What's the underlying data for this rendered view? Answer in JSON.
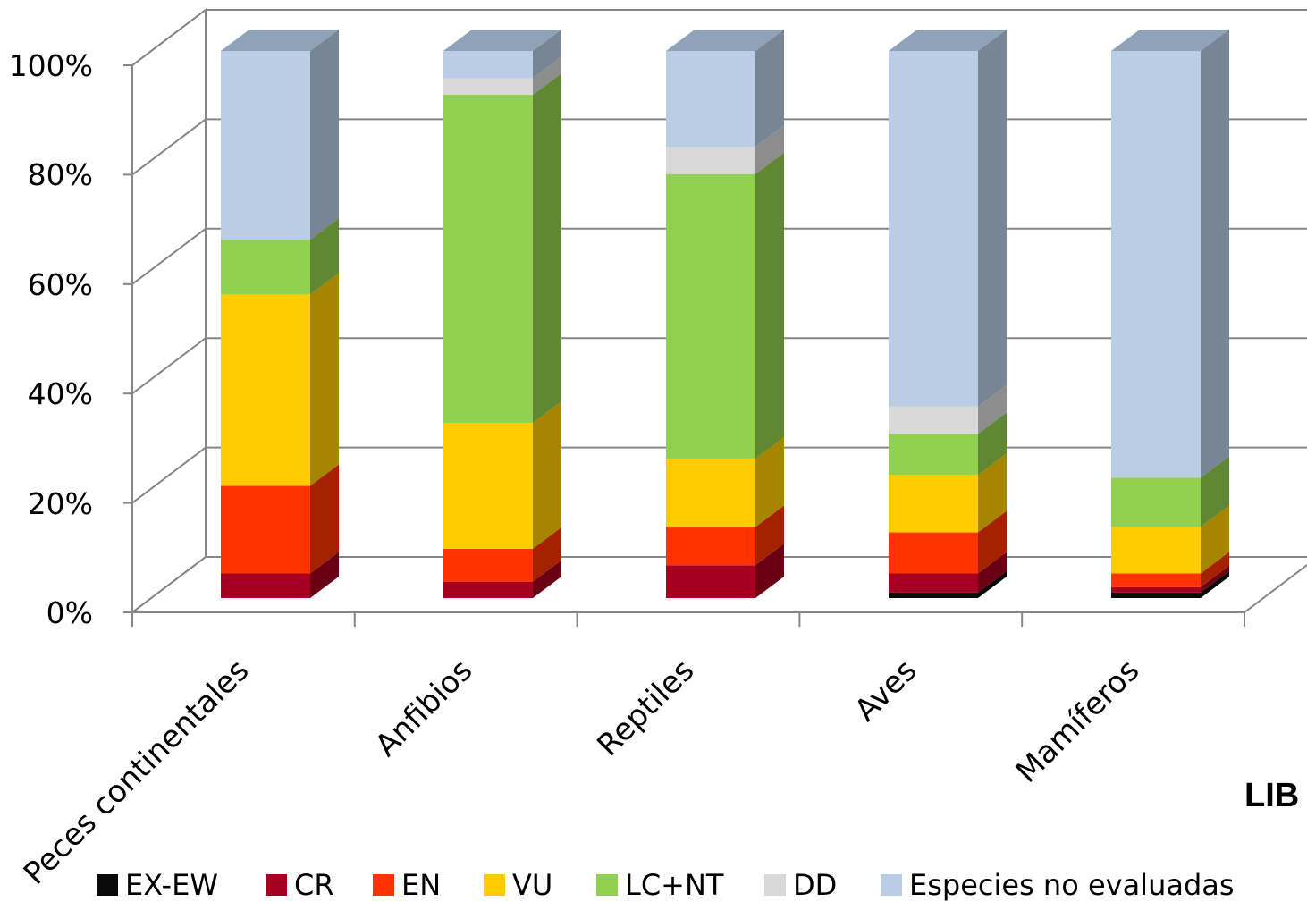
{
  "chart_data": {
    "type": "bar",
    "stacked": "percent",
    "three_d": true,
    "categories": [
      "Peces continentales",
      "Anfibios",
      "Reptiles",
      "Aves",
      "Mamíferos"
    ],
    "series": [
      {
        "name": "EX-EW",
        "color": "#0a0a0a",
        "values": [
          0,
          0,
          0,
          1,
          1
        ]
      },
      {
        "name": "CR",
        "color": "#a50021",
        "values": [
          4.5,
          3,
          6,
          3.5,
          1
        ]
      },
      {
        "name": "EN",
        "color": "#ff3300",
        "values": [
          16,
          6,
          7,
          7.5,
          2.5
        ]
      },
      {
        "name": "VU",
        "color": "#ffcc00",
        "values": [
          35,
          23,
          12.5,
          10.5,
          8.5
        ]
      },
      {
        "name": "LC+NT",
        "color": "#92d050",
        "values": [
          10,
          60,
          52,
          7.5,
          9
        ]
      },
      {
        "name": "DD",
        "color": "#d9d9d9",
        "values": [
          0,
          3,
          5,
          5,
          0
        ]
      },
      {
        "name": "Especies no evaluadas",
        "color": "#b9cde5",
        "values": [
          34.5,
          5,
          17.5,
          65,
          78
        ]
      }
    ],
    "y_ticks": [
      "0%",
      "20%",
      "40%",
      "60%",
      "80%",
      "100%"
    ],
    "ylim": [
      0,
      100
    ],
    "grid": true,
    "legend_position": "bottom",
    "clipped_text": "LIB"
  }
}
